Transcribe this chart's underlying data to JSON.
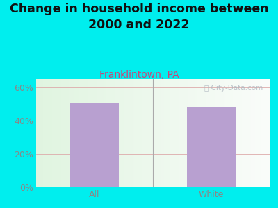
{
  "title": "Change in household income between\n2000 and 2022",
  "subtitle": "Franklintown, PA",
  "categories": [
    "All",
    "White"
  ],
  "values": [
    50.5,
    48.0
  ],
  "bar_color": "#b8a0d0",
  "title_fontsize": 12.5,
  "subtitle_fontsize": 10,
  "subtitle_color": "#cc4477",
  "tick_label_fontsize": 9,
  "background_color": "#00eeee",
  "ylim": [
    0,
    65
  ],
  "yticks": [
    0,
    20,
    40,
    60
  ],
  "ytick_labels": [
    "0%",
    "20%",
    "40%",
    "60%"
  ],
  "watermark": "ⓘ City-Data.com",
  "grid_color": "#ddaaaa",
  "title_color": "#111111",
  "tick_color": "#888888"
}
